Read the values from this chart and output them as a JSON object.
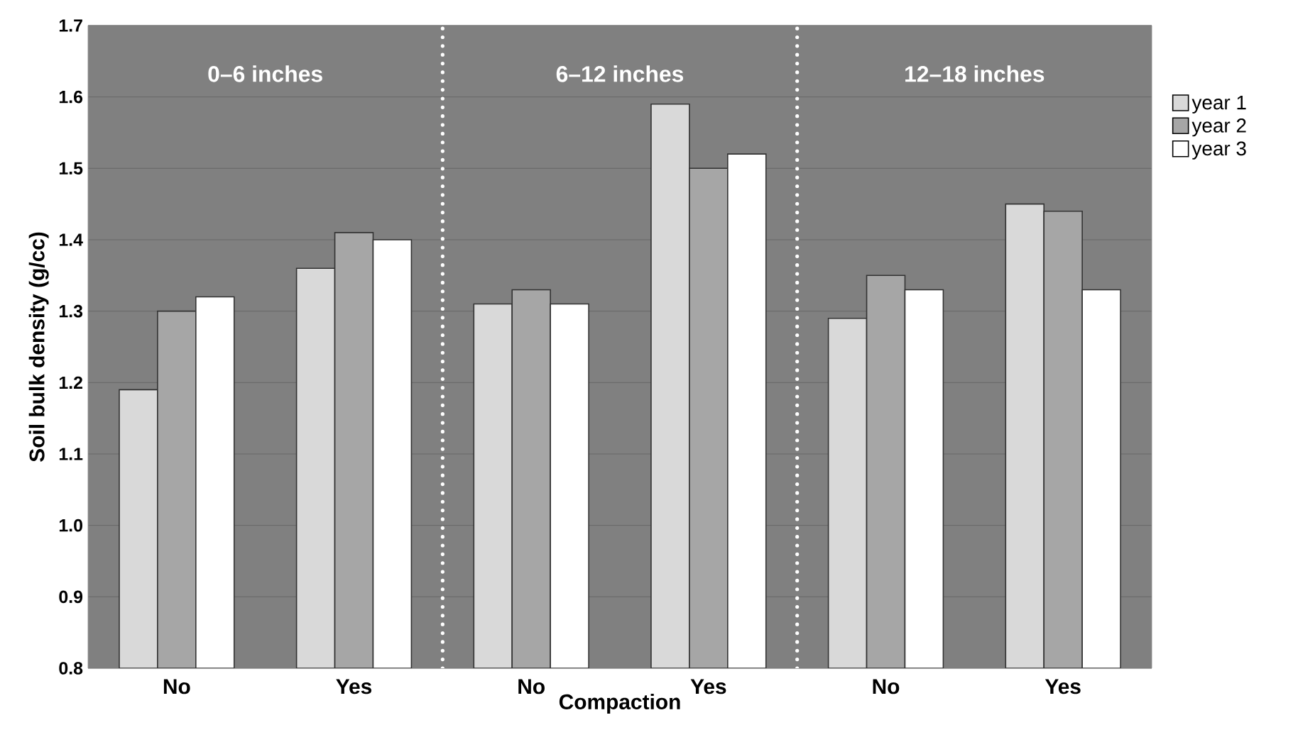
{
  "chart_data": {
    "type": "bar",
    "xlabel": "Compaction",
    "ylabel": "Soil bulk density (g/cc)",
    "categories": [
      "No",
      "Yes",
      "No",
      "Yes",
      "No",
      "Yes"
    ],
    "series": [
      {
        "name": "year 1",
        "color": "#d9d9d9",
        "values": [
          1.19,
          1.36,
          1.31,
          1.59,
          1.29,
          1.45
        ]
      },
      {
        "name": "year 2",
        "color": "#a6a6a6",
        "values": [
          1.3,
          1.41,
          1.33,
          1.5,
          1.35,
          1.44
        ]
      },
      {
        "name": "year 3",
        "color": "#ffffff",
        "values": [
          1.32,
          1.4,
          1.31,
          1.52,
          1.33,
          1.33
        ]
      }
    ],
    "ylim": [
      0.8,
      1.7
    ],
    "yticks": [
      {
        "value": 0.8,
        "label": "0.8"
      },
      {
        "value": 0.9,
        "label": "0.9"
      },
      {
        "value": 1.0,
        "label": "1.0"
      },
      {
        "value": 1.1,
        "label": "1.1"
      },
      {
        "value": 1.2,
        "label": "1.2"
      },
      {
        "value": 1.3,
        "label": "1.3"
      },
      {
        "value": 1.4,
        "label": "1.4"
      },
      {
        "value": 1.5,
        "label": "1.5"
      },
      {
        "value": 1.6,
        "label": "1.6"
      },
      {
        "value": 1.7,
        "label": "1.7"
      }
    ],
    "annotations": [
      "0–6 inches",
      "6–12 inches",
      "12–18 inches"
    ],
    "grid": "y",
    "legend": "top right"
  }
}
